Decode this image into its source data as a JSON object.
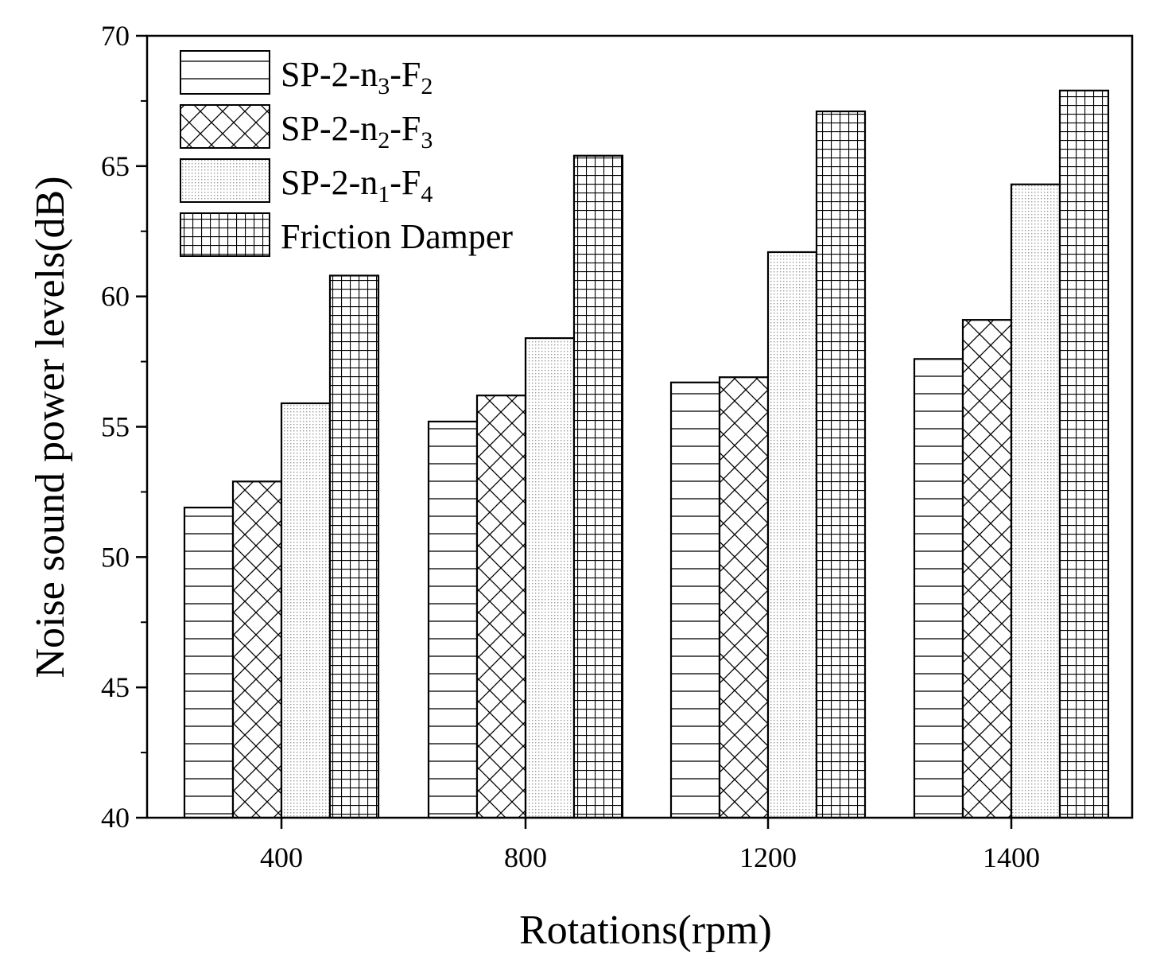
{
  "chart_data": {
    "type": "bar",
    "title": "",
    "xlabel": "Rotations(rpm)",
    "ylabel": "Noise sound power levels(dB)",
    "categories": [
      "400",
      "800",
      "1200",
      "1400"
    ],
    "ylim": [
      40,
      70
    ],
    "yticks": [
      40,
      45,
      50,
      55,
      60,
      65,
      70
    ],
    "legend_position": "top-left",
    "grid": false,
    "series": [
      {
        "name": "SP-2-n3-F2",
        "base": "SP-2-n",
        "sub1": "3",
        "mid": "-F",
        "sub2": "2",
        "pattern": "hlines",
        "values": [
          51.9,
          55.2,
          56.7,
          57.6
        ]
      },
      {
        "name": "SP-2-n2-F3",
        "base": "SP-2-n",
        "sub1": "2",
        "mid": "-F",
        "sub2": "3",
        "pattern": "crosshatch",
        "values": [
          52.9,
          56.2,
          56.9,
          59.1
        ]
      },
      {
        "name": "SP-2-n1-F4",
        "base": "SP-2-n",
        "sub1": "1",
        "mid": "-F",
        "sub2": "4",
        "pattern": "dots",
        "values": [
          55.9,
          58.4,
          61.7,
          64.3
        ]
      },
      {
        "name": "Friction Damper",
        "base": "Friction Damper",
        "sub1": "",
        "mid": "",
        "sub2": "",
        "pattern": "grid",
        "values": [
          60.8,
          65.4,
          67.1,
          67.9
        ]
      }
    ]
  }
}
